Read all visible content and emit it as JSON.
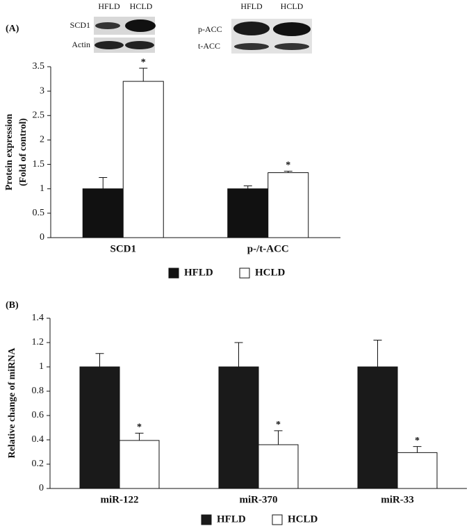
{
  "blots": {
    "left": {
      "lanes": [
        "HFLD",
        "HCLD"
      ],
      "rows": [
        "SCD1",
        "Actin"
      ]
    },
    "right": {
      "lanes": [
        "HFLD",
        "HCLD"
      ],
      "rows": [
        "p-ACC",
        "t-ACC"
      ]
    }
  },
  "chart_data": [
    {
      "type": "bar",
      "panel": "(A)",
      "ylabel": [
        "Protein expression",
        "(Fold of control)"
      ],
      "categories": [
        "SCD1",
        "p-/t-ACC"
      ],
      "series": [
        {
          "name": "HFLD",
          "color": "#111111",
          "values": [
            1,
            1
          ],
          "errors": [
            0.23,
            0.06
          ]
        },
        {
          "name": "HCLD",
          "color": "#ffffff",
          "values": [
            3.2,
            1.33
          ],
          "errors": [
            0.27,
            0.03
          ],
          "significance": [
            "*",
            "*"
          ]
        }
      ],
      "ylim": [
        0,
        3.5
      ],
      "yticks": [
        0,
        0.5,
        1,
        1.5,
        2,
        2.5,
        3,
        3.5
      ]
    },
    {
      "type": "bar",
      "panel": "(B)",
      "ylabel": [
        "Relative change of miRNA"
      ],
      "categories": [
        "miR-122",
        "miR-370",
        "miR-33"
      ],
      "series": [
        {
          "name": "HFLD",
          "color": "#1a1a1a",
          "values": [
            1,
            1,
            1
          ],
          "errors": [
            0.11,
            0.2,
            0.22
          ]
        },
        {
          "name": "HCLD",
          "color": "#ffffff",
          "values": [
            0.395,
            0.36,
            0.295
          ],
          "errors": [
            0.06,
            0.115,
            0.05
          ],
          "significance": [
            "*",
            "*",
            "*"
          ]
        }
      ],
      "ylim": [
        0,
        1.4
      ],
      "yticks": [
        0,
        0.2,
        0.4,
        0.6,
        0.8,
        1,
        1.2,
        1.4
      ]
    }
  ]
}
